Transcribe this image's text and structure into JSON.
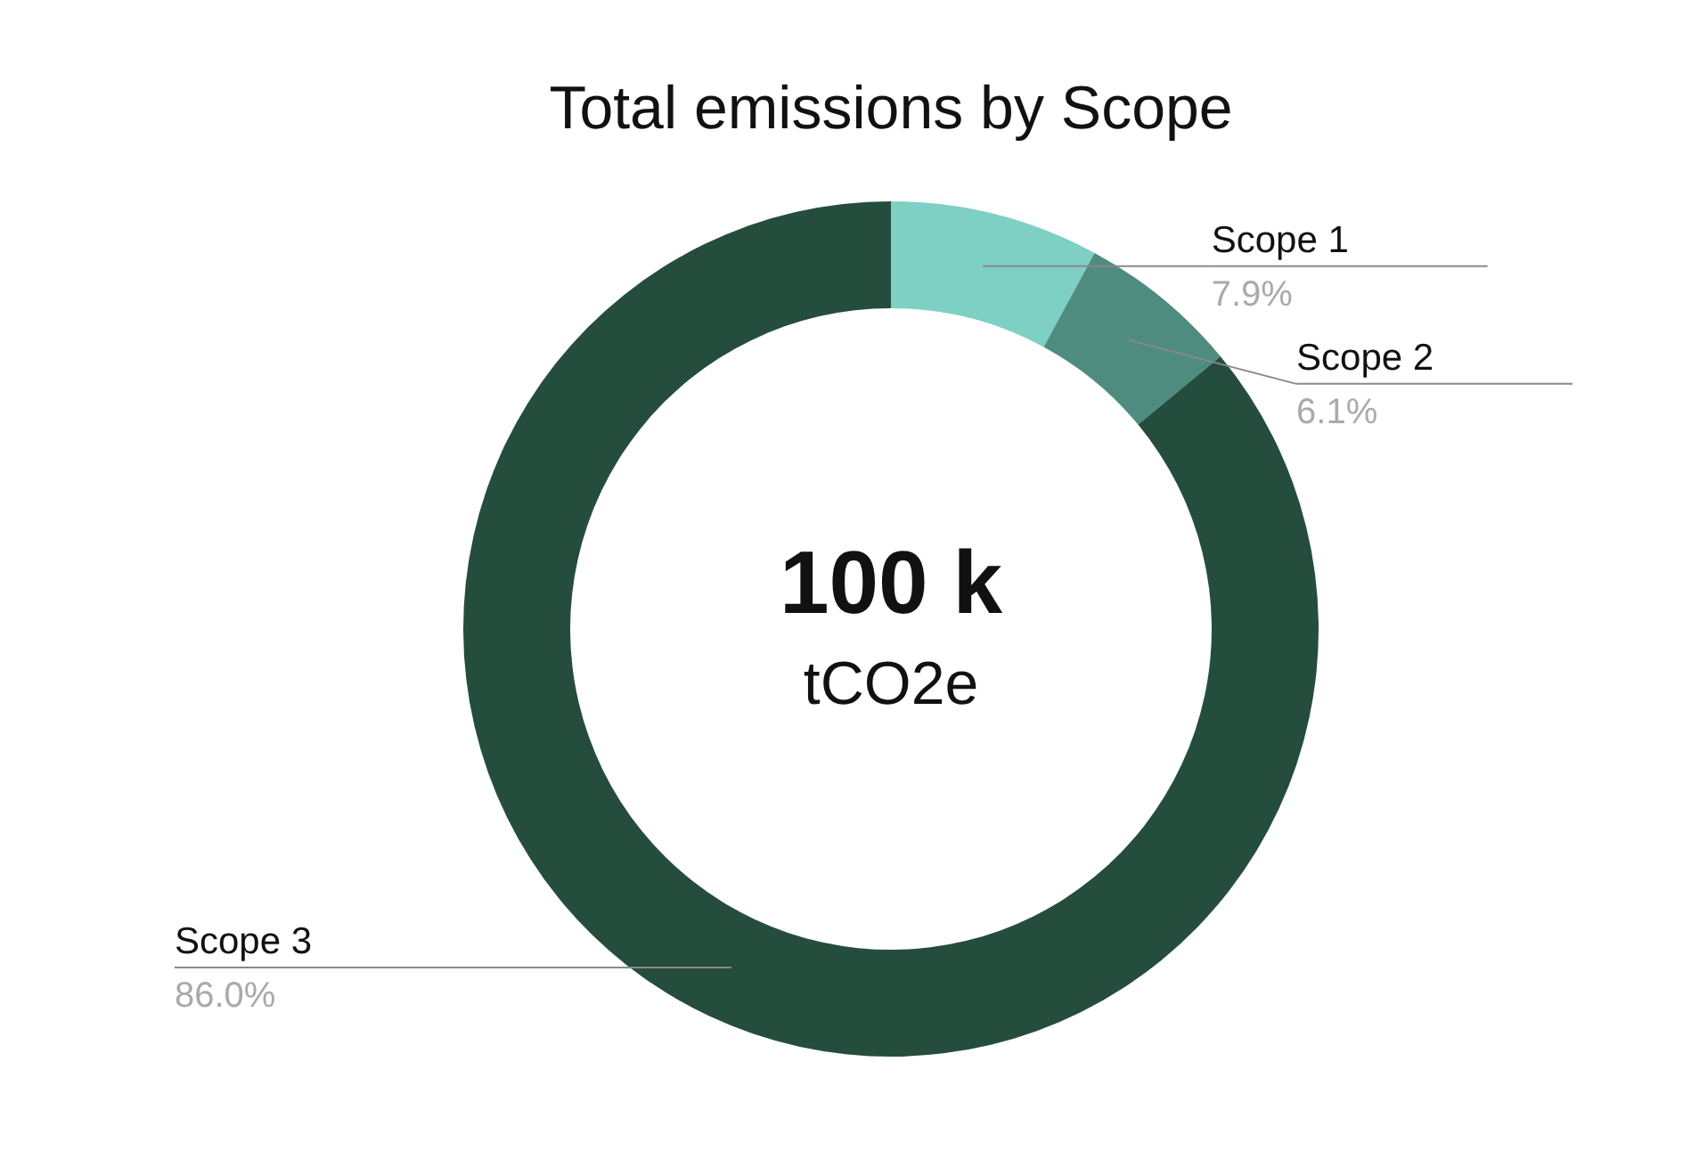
{
  "chart_data": {
    "type": "donut",
    "title": "Total emissions by Scope",
    "categories": [
      "Scope 1",
      "Scope 2",
      "Scope 3"
    ],
    "values": [
      7.9,
      6.1,
      86.0
    ],
    "value_labels": [
      "7.9%",
      "6.1%",
      "86.0%"
    ],
    "colors": [
      "#7ecfc4",
      "#4e8c80",
      "#254d3e"
    ],
    "annotations": [
      "100 k",
      "tCO2e"
    ]
  }
}
